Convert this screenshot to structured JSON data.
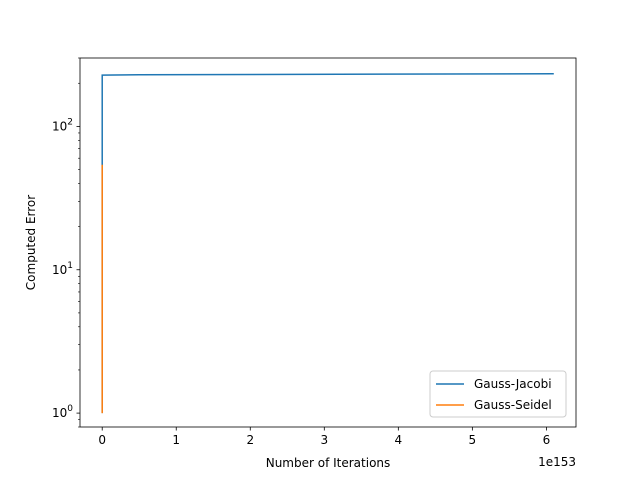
{
  "chart_data": {
    "type": "line",
    "xlabel": "Number of Iterations",
    "ylabel": "Computed Error",
    "x_offset_label": "1e153",
    "yscale": "log",
    "xlim": [
      -0.3,
      6.4
    ],
    "ylim": [
      0.8,
      300
    ],
    "x_ticks": [
      {
        "value": 0,
        "label": "0"
      },
      {
        "value": 1,
        "label": "1"
      },
      {
        "value": 2,
        "label": "2"
      },
      {
        "value": 3,
        "label": "3"
      },
      {
        "value": 4,
        "label": "4"
      },
      {
        "value": 5,
        "label": "5"
      },
      {
        "value": 6,
        "label": "6"
      }
    ],
    "y_ticks": [
      {
        "value": 1,
        "base": "10",
        "exp": "0"
      },
      {
        "value": 10,
        "base": "10",
        "exp": "1"
      },
      {
        "value": 100,
        "base": "10",
        "exp": "2"
      }
    ],
    "legend_position": "lower-right",
    "grid": false,
    "series": [
      {
        "name": "Gauss-Jacobi",
        "color": "#1f77b4",
        "points": [
          [
            0,
            1
          ],
          [
            0,
            228
          ],
          [
            0.5,
            229
          ],
          [
            6.1,
            233
          ]
        ]
      },
      {
        "name": "Gauss-Seidel",
        "color": "#ff7f0e",
        "points": [
          [
            0,
            1
          ],
          [
            0,
            54
          ]
        ]
      }
    ]
  }
}
